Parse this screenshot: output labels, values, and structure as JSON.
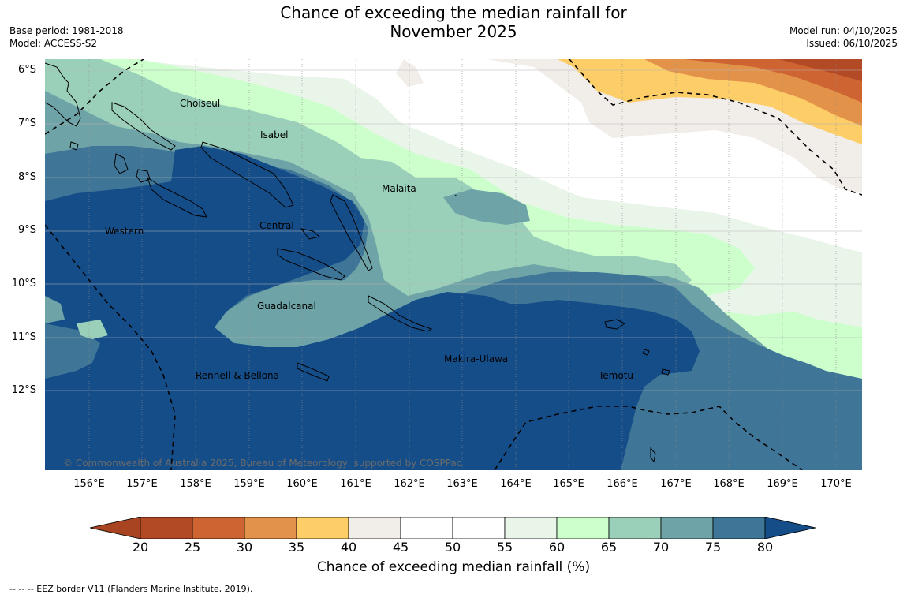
{
  "title_line1": "Chance of exceeding the median rainfall for",
  "title_line2": "November 2025",
  "base_period": "Base period: 1981-2018",
  "model": "Model: ACCESS-S2",
  "model_run": "Model run: 04/10/2025",
  "issued": "Issued: 06/10/2025",
  "lat_labels": [
    "6°S",
    "7°S",
    "8°S",
    "9°S",
    "10°S",
    "11°S",
    "12°S"
  ],
  "lon_labels": [
    "156°E",
    "157°E",
    "158°E",
    "159°E",
    "160°E",
    "161°E",
    "162°E",
    "163°E",
    "164°E",
    "165°E",
    "166°E",
    "167°E",
    "168°E",
    "169°E",
    "170°E"
  ],
  "places": {
    "choiseul": "Choiseul",
    "isabel": "Isabel",
    "malaita": "Malaita",
    "western": "Western",
    "central": "Central",
    "guadalcanal": "Guadalcanal",
    "makira": "Makira-Ulawa",
    "rennell": "Rennell & Bellona",
    "temotu": "Temotu"
  },
  "copyright": "© Commonwealth of Australia 2025, Bureau of Meteorology, supported by COSPPac",
  "colorbar": {
    "label": "Chance of exceeding median rainfall (%)",
    "ticks": [
      "20",
      "25",
      "30",
      "35",
      "40",
      "45",
      "50",
      "55",
      "60",
      "65",
      "70",
      "75",
      "80"
    ],
    "colors": [
      "#a94423",
      "#b34a26",
      "#cd6432",
      "#e3924a",
      "#fdcd68",
      "#f1ede8",
      "#ffffff",
      "#ffffff",
      "#eaf5ea",
      "#ccffcc",
      "#9ad0b9",
      "#6ea4a7",
      "#3f7697",
      "#154d89"
    ]
  },
  "footnote": "--  --  -- EEZ border V11 (Flanders Marine Institute, 2019)."
}
